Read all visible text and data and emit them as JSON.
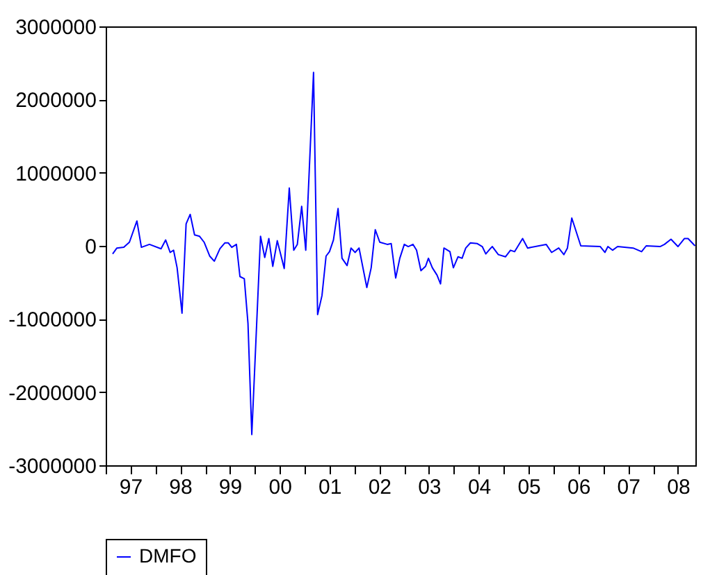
{
  "chart_data": {
    "type": "line",
    "x": [
      "1997-02-21",
      "1997-03-24",
      "1997-05-14",
      "1997-06-24",
      "1997-08-18",
      "1997-09-20",
      "1997-11-18",
      "1998-02-11",
      "1998-03-17",
      "1998-04-19",
      "1998-05-14",
      "1998-06-09",
      "1998-07-15",
      "1998-08-14",
      "1998-09-13",
      "1998-10-15",
      "1998-11-21",
      "1998-12-24",
      "1999-02-03",
      "1999-03-09",
      "1999-04-19",
      "1999-05-25",
      "1999-06-20",
      "1999-07-15",
      "1999-08-18",
      "1999-09-13",
      "1999-10-15",
      "1999-11-11",
      "1999-12-09",
      "2000-01-08",
      "2000-02-11",
      "2000-03-13",
      "2000-04-12",
      "2000-05-11",
      "2000-06-13",
      "2000-08-03",
      "2000-09-09",
      "2000-10-12",
      "2000-11-07",
      "2000-12-09",
      "2001-01-08",
      "2001-03-06",
      "2001-04-05",
      "2001-05-07",
      "2001-06-06",
      "2001-07-01",
      "2001-07-30",
      "2001-09-02",
      "2001-10-01",
      "2001-11-07",
      "2001-12-06",
      "2002-01-05",
      "2002-02-03",
      "2002-04-01",
      "2002-05-03",
      "2002-06-02",
      "2002-07-05",
      "2002-08-29",
      "2002-09-27",
      "2002-10-30",
      "2002-11-29",
      "2003-01-01",
      "2003-01-30",
      "2003-03-06",
      "2003-04-01",
      "2003-05-03",
      "2003-06-06",
      "2003-06-27",
      "2003-07-26",
      "2003-08-29",
      "2003-09-24",
      "2003-10-19",
      "2003-12-02",
      "2003-12-27",
      "2004-01-30",
      "2004-02-29",
      "2004-03-27",
      "2004-04-30",
      "2004-06-20",
      "2004-07-26",
      "2004-08-21",
      "2004-09-27",
      "2004-10-08",
      "2004-11-21",
      "2005-01-12",
      "2005-02-18",
      "2005-03-20",
      "2005-05-18",
      "2005-06-24",
      "2005-11-07",
      "2005-12-17",
      "2006-02-07",
      "2006-03-17",
      "2006-04-12",
      "2006-05-14",
      "2006-07-19",
      "2006-12-09",
      "2007-01-12",
      "2007-02-03",
      "2007-03-09",
      "2007-04-15",
      "2007-08-07",
      "2007-10-08",
      "2007-11-11",
      "2008-02-21",
      "2008-03-24",
      "2008-05-11",
      "2008-07-01",
      "2008-08-18",
      "2008-09-13",
      "2008-11-03"
    ],
    "series": [
      {
        "name": "DMFO",
        "color": "#0000ff",
        "values": [
          -110000,
          -30000,
          -20000,
          50000,
          340000,
          -20000,
          20000,
          -40000,
          80000,
          -90000,
          -60000,
          -300000,
          -920000,
          300000,
          430000,
          150000,
          130000,
          50000,
          -140000,
          -210000,
          -40000,
          40000,
          40000,
          -20000,
          20000,
          -420000,
          -450000,
          -1060000,
          -2580000,
          -1310000,
          130000,
          -160000,
          100000,
          -280000,
          70000,
          -310000,
          790000,
          -60000,
          20000,
          540000,
          -60000,
          2370000,
          -940000,
          -680000,
          -140000,
          -80000,
          80000,
          510000,
          -170000,
          -270000,
          -30000,
          -90000,
          -30000,
          -570000,
          -300000,
          220000,
          50000,
          20000,
          30000,
          -440000,
          -170000,
          20000,
          -10000,
          20000,
          -60000,
          -340000,
          -280000,
          -170000,
          -300000,
          -400000,
          -520000,
          -30000,
          -80000,
          -300000,
          -150000,
          -170000,
          -30000,
          40000,
          30000,
          -10000,
          -110000,
          -30000,
          -10000,
          -120000,
          -150000,
          -60000,
          -80000,
          100000,
          -30000,
          20000,
          -90000,
          -30000,
          -120000,
          -30000,
          380000,
          0,
          -10000,
          -90000,
          -10000,
          -60000,
          -10000,
          -30000,
          -80000,
          0,
          -10000,
          20000,
          90000,
          -10000,
          100000,
          100000,
          0
        ]
      }
    ],
    "xlim": [
      "1997-01-01",
      "2008-11-06"
    ],
    "xticks": [
      {
        "value": "1997-01-01",
        "label": null
      },
      {
        "value": "1997-07-01",
        "label": "97"
      },
      {
        "value": "1998-01-01",
        "label": null
      },
      {
        "value": "1998-07-01",
        "label": "98"
      },
      {
        "value": "1999-01-01",
        "label": null
      },
      {
        "value": "1999-07-01",
        "label": "99"
      },
      {
        "value": "2000-01-01",
        "label": null
      },
      {
        "value": "2000-07-01",
        "label": "00"
      },
      {
        "value": "2001-01-01",
        "label": null
      },
      {
        "value": "2001-07-01",
        "label": "01"
      },
      {
        "value": "2002-01-01",
        "label": null
      },
      {
        "value": "2002-07-01",
        "label": "02"
      },
      {
        "value": "2003-01-01",
        "label": null
      },
      {
        "value": "2003-07-01",
        "label": "03"
      },
      {
        "value": "2004-01-01",
        "label": null
      },
      {
        "value": "2004-07-01",
        "label": "04"
      },
      {
        "value": "2005-01-01",
        "label": null
      },
      {
        "value": "2005-07-01",
        "label": "05"
      },
      {
        "value": "2006-01-01",
        "label": null
      },
      {
        "value": "2006-07-01",
        "label": "06"
      },
      {
        "value": "2007-01-01",
        "label": null
      },
      {
        "value": "2007-07-01",
        "label": "07"
      },
      {
        "value": "2008-01-01",
        "label": null
      },
      {
        "value": "2008-07-01",
        "label": "08"
      }
    ],
    "ylim": [
      -3000000,
      3000000
    ],
    "yticks": [
      -3000000,
      -2000000,
      -1000000,
      0,
      1000000,
      2000000,
      3000000
    ],
    "grid": false,
    "legend": "bottom",
    "marker": "none",
    "line_style": "solid"
  }
}
